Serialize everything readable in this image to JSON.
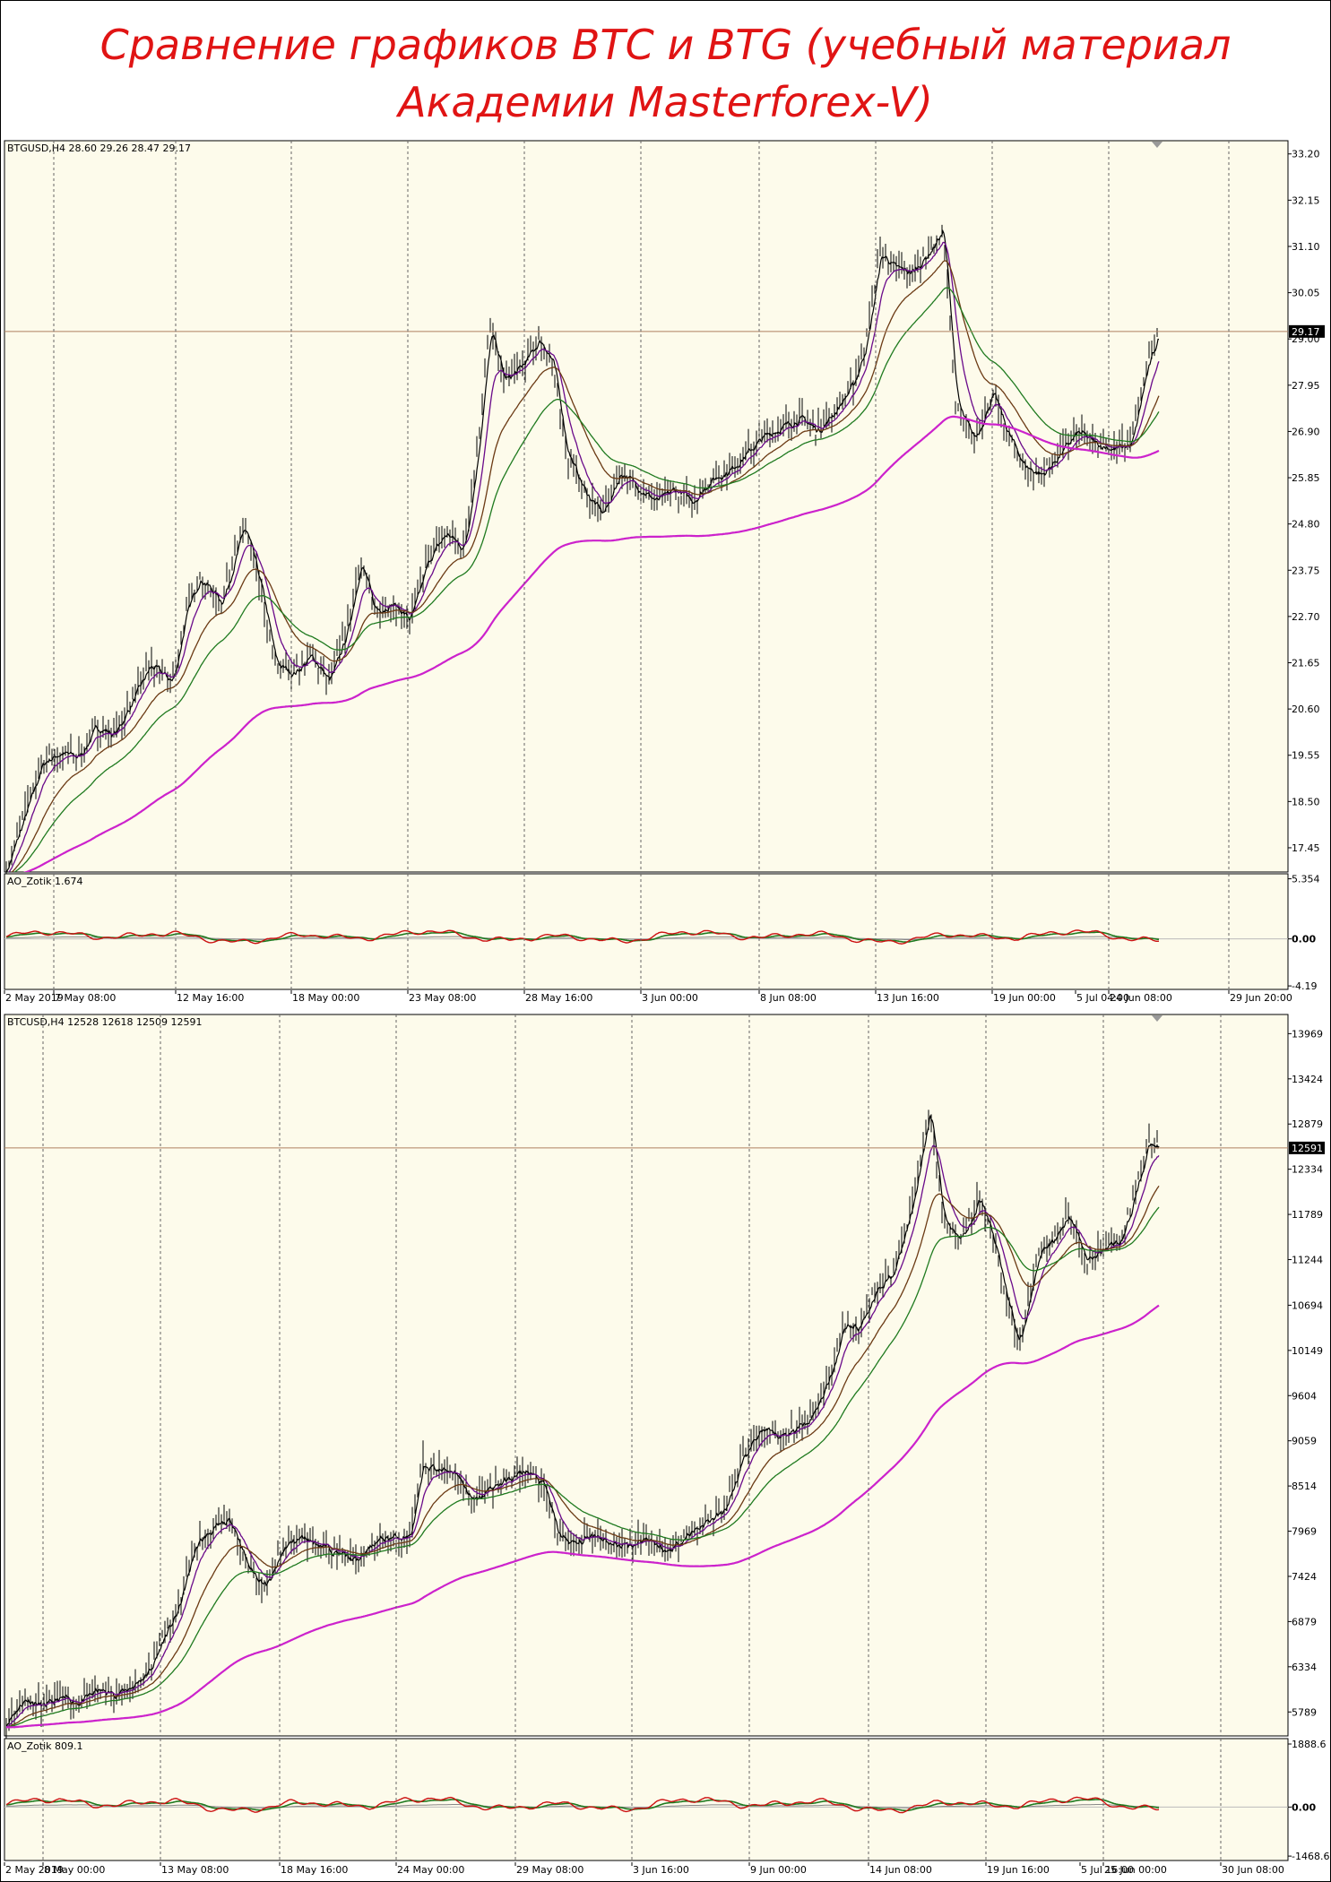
{
  "title": {
    "line1": "Сравнение графиков BTC и BTG (учебный материал",
    "line2": "Академии Masterforex-V)"
  },
  "colors": {
    "background": "#fdfbeb",
    "price": "#000000",
    "ma_fast": "#6a0a8a",
    "ma_mid": "#6b3a14",
    "ma_slow": "#1f7a1f",
    "ma_long": "#cc22cc",
    "ao_red": "#cc1111",
    "ao_green": "#1f7a1f",
    "ao_grey": "#888888",
    "grid": "#666666",
    "title": "#e01414"
  },
  "chart_data": [
    {
      "type": "line",
      "panel": "price",
      "header": "BTGUSD,H4  28.60 29.26 28.47 29.17",
      "ylim": [
        16.9,
        33.5
      ],
      "y_ticks": [
        "33.20",
        "32.15",
        "31.10",
        "30.05",
        "29.00",
        "27.95",
        "26.90",
        "25.85",
        "24.80",
        "23.75",
        "22.70",
        "21.65",
        "20.60",
        "19.55",
        "18.50",
        "17.45"
      ],
      "current_price": "29.17",
      "x_anchor_values": [
        [
          0,
          17.0
        ],
        [
          20,
          18.2
        ],
        [
          40,
          19.4
        ],
        [
          60,
          19.6
        ],
        [
          80,
          19.5
        ],
        [
          100,
          20.2
        ],
        [
          120,
          20.0
        ],
        [
          140,
          20.8
        ],
        [
          160,
          21.6
        ],
        [
          185,
          21.2
        ],
        [
          200,
          22.8
        ],
        [
          215,
          23.6
        ],
        [
          240,
          23.0
        ],
        [
          265,
          24.8
        ],
        [
          285,
          23.2
        ],
        [
          300,
          21.6
        ],
        [
          320,
          21.4
        ],
        [
          340,
          21.8
        ],
        [
          360,
          21.2
        ],
        [
          380,
          22.4
        ],
        [
          395,
          24.0
        ],
        [
          410,
          22.8
        ],
        [
          430,
          23.0
        ],
        [
          450,
          22.6
        ],
        [
          470,
          24.0
        ],
        [
          490,
          24.6
        ],
        [
          510,
          24.2
        ],
        [
          525,
          26.4
        ],
        [
          540,
          29.3
        ],
        [
          555,
          28.0
        ],
        [
          575,
          28.4
        ],
        [
          595,
          29.0
        ],
        [
          610,
          28.4
        ],
        [
          625,
          26.4
        ],
        [
          645,
          25.5
        ],
        [
          665,
          25.0
        ],
        [
          685,
          26.0
        ],
        [
          705,
          25.6
        ],
        [
          725,
          25.3
        ],
        [
          745,
          25.6
        ],
        [
          765,
          25.3
        ],
        [
          785,
          25.8
        ],
        [
          805,
          26.0
        ],
        [
          825,
          26.4
        ],
        [
          845,
          26.8
        ],
        [
          865,
          27.0
        ],
        [
          885,
          27.2
        ],
        [
          905,
          26.9
        ],
        [
          925,
          27.4
        ],
        [
          945,
          28.0
        ],
        [
          960,
          29.0
        ],
        [
          975,
          31.0
        ],
        [
          990,
          30.6
        ],
        [
          1010,
          30.5
        ],
        [
          1030,
          31.0
        ],
        [
          1045,
          31.5
        ],
        [
          1060,
          27.4
        ],
        [
          1080,
          26.7
        ],
        [
          1100,
          27.8
        ],
        [
          1115,
          26.9
        ],
        [
          1135,
          26.1
        ],
        [
          1155,
          25.9
        ],
        [
          1175,
          26.4
        ],
        [
          1195,
          26.9
        ],
        [
          1215,
          26.6
        ],
        [
          1235,
          26.5
        ],
        [
          1255,
          26.6
        ],
        [
          1270,
          28.2
        ],
        [
          1286,
          29.17
        ]
      ],
      "series": [
        {
          "color_key": "price"
        },
        {
          "color_key": "ma_fast"
        },
        {
          "color_key": "ma_mid"
        },
        {
          "color_key": "ma_slow"
        },
        {
          "color_key": "ma_long"
        }
      ]
    },
    {
      "type": "line",
      "panel": "oscillator",
      "header": "AO_Zotik 1.674",
      "ylim": [
        -4.5,
        5.8
      ],
      "y_ticks": [
        "5.354",
        "0.00",
        "-4.19"
      ],
      "x_labels": [
        "2 May 2019",
        "7 May 08:00",
        "12 May 16:00",
        "18 May 00:00",
        "23 May 08:00",
        "28 May 16:00",
        "3 Jun 00:00",
        "8 Jun 08:00",
        "13 Jun 16:00",
        "19 Jun 00:00",
        "24 Jun 08:00",
        "29 Jun 20:00",
        "5 Jul 04:00"
      ]
    },
    {
      "type": "line",
      "panel": "price",
      "header": "BTCUSD,H4  12528 12618 12509 12591",
      "ylim": [
        5500,
        14200
      ],
      "y_ticks": [
        "13969",
        "13424",
        "12879",
        "12334",
        "11789",
        "11244",
        "10694",
        "10149",
        "9604",
        "9059",
        "8514",
        "7969",
        "7424",
        "6879",
        "6334",
        "5789"
      ],
      "current_price": "12591",
      "x_anchor_values": [
        [
          0,
          5700
        ],
        [
          20,
          5950
        ],
        [
          40,
          5850
        ],
        [
          60,
          5950
        ],
        [
          80,
          5900
        ],
        [
          100,
          6050
        ],
        [
          120,
          6000
        ],
        [
          140,
          6100
        ],
        [
          160,
          6300
        ],
        [
          175,
          6700
        ],
        [
          190,
          7000
        ],
        [
          210,
          7800
        ],
        [
          230,
          8000
        ],
        [
          250,
          8100
        ],
        [
          270,
          7500
        ],
        [
          290,
          7300
        ],
        [
          310,
          7800
        ],
        [
          330,
          7900
        ],
        [
          350,
          7800
        ],
        [
          370,
          7700
        ],
        [
          390,
          7600
        ],
        [
          410,
          7850
        ],
        [
          430,
          7900
        ],
        [
          450,
          7900
        ],
        [
          465,
          8800
        ],
        [
          480,
          8700
        ],
        [
          500,
          8700
        ],
        [
          520,
          8300
        ],
        [
          540,
          8500
        ],
        [
          560,
          8600
        ],
        [
          580,
          8700
        ],
        [
          600,
          8500
        ],
        [
          615,
          7900
        ],
        [
          635,
          7800
        ],
        [
          655,
          7950
        ],
        [
          675,
          7800
        ],
        [
          695,
          7800
        ],
        [
          715,
          7900
        ],
        [
          735,
          7700
        ],
        [
          755,
          7900
        ],
        [
          775,
          8050
        ],
        [
          800,
          8200
        ],
        [
          820,
          8800
        ],
        [
          840,
          9200
        ],
        [
          860,
          9100
        ],
        [
          880,
          9200
        ],
        [
          900,
          9400
        ],
        [
          920,
          9900
        ],
        [
          935,
          10500
        ],
        [
          950,
          10400
        ],
        [
          970,
          10900
        ],
        [
          990,
          11100
        ],
        [
          1010,
          11900
        ],
        [
          1030,
          13100
        ],
        [
          1045,
          11700
        ],
        [
          1065,
          11500
        ],
        [
          1085,
          12000
        ],
        [
          1100,
          11500
        ],
        [
          1115,
          10800
        ],
        [
          1130,
          10200
        ],
        [
          1150,
          11300
        ],
        [
          1170,
          11500
        ],
        [
          1185,
          11800
        ],
        [
          1205,
          11200
        ],
        [
          1225,
          11400
        ],
        [
          1245,
          11500
        ],
        [
          1260,
          12100
        ],
        [
          1275,
          12700
        ],
        [
          1286,
          12591
        ]
      ],
      "series": [
        {
          "color_key": "price"
        },
        {
          "color_key": "ma_fast"
        },
        {
          "color_key": "ma_mid"
        },
        {
          "color_key": "ma_slow"
        },
        {
          "color_key": "ma_long"
        }
      ]
    },
    {
      "type": "line",
      "panel": "oscillator",
      "header": "AO_Zotik 809.1",
      "ylim": [
        -1600,
        2050
      ],
      "y_ticks": [
        "1888.6",
        "0.00",
        "-1468.6"
      ],
      "x_labels": [
        "2 May 2019",
        "8 May 00:00",
        "13 May 08:00",
        "18 May 16:00",
        "24 May 00:00",
        "29 May 08:00",
        "3 Jun 16:00",
        "9 Jun 00:00",
        "14 Jun 08:00",
        "19 Jun 16:00",
        "25 Jun 00:00",
        "30 Jun 08:00",
        "5 Jul 16:00"
      ]
    }
  ]
}
